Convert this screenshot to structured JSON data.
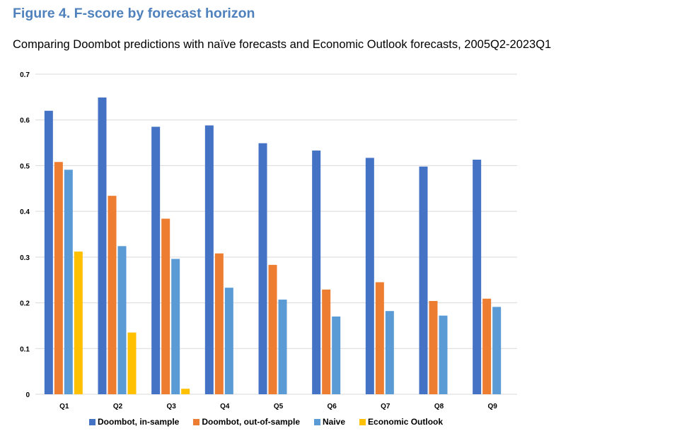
{
  "figure": {
    "title": "Figure 4. F-score by forecast horizon",
    "subtitle": "Comparing Doombot predictions with naïve forecasts and Economic Outlook forecasts, 2005Q2-2023Q1"
  },
  "chart_data": {
    "type": "bar",
    "title": "Figure 4. F-score by forecast horizon",
    "subtitle": "Comparing Doombot predictions with naïve forecasts and Economic Outlook forecasts, 2005Q2-2023Q1",
    "xlabel": "",
    "ylabel": "",
    "categories": [
      "Q1",
      "Q2",
      "Q3",
      "Q4",
      "Q5",
      "Q6",
      "Q7",
      "Q8",
      "Q9"
    ],
    "ylim": [
      0,
      0.7
    ],
    "yticks": [
      "0",
      "0.1",
      "0.2",
      "0.3",
      "0.4",
      "0.5",
      "0.6",
      "0.7"
    ],
    "grid": true,
    "legend_position": "bottom",
    "series": [
      {
        "name": "Doombot, in-sample",
        "color": "#4472c4",
        "values": [
          0.62,
          0.649,
          0.585,
          0.588,
          0.549,
          0.533,
          0.517,
          0.498,
          0.513
        ]
      },
      {
        "name": "Doombot, out-of-sample",
        "color": "#ed7d31",
        "values": [
          0.508,
          0.434,
          0.384,
          0.308,
          0.283,
          0.229,
          0.245,
          0.204,
          0.209
        ]
      },
      {
        "name": "Naive",
        "color": "#5b9bd5",
        "values": [
          0.491,
          0.324,
          0.296,
          0.233,
          0.207,
          0.17,
          0.182,
          0.172,
          0.191
        ]
      },
      {
        "name": "Economic Outlook",
        "color": "#ffc000",
        "values": [
          0.312,
          0.135,
          0.012,
          null,
          null,
          null,
          null,
          null,
          null
        ]
      }
    ]
  }
}
